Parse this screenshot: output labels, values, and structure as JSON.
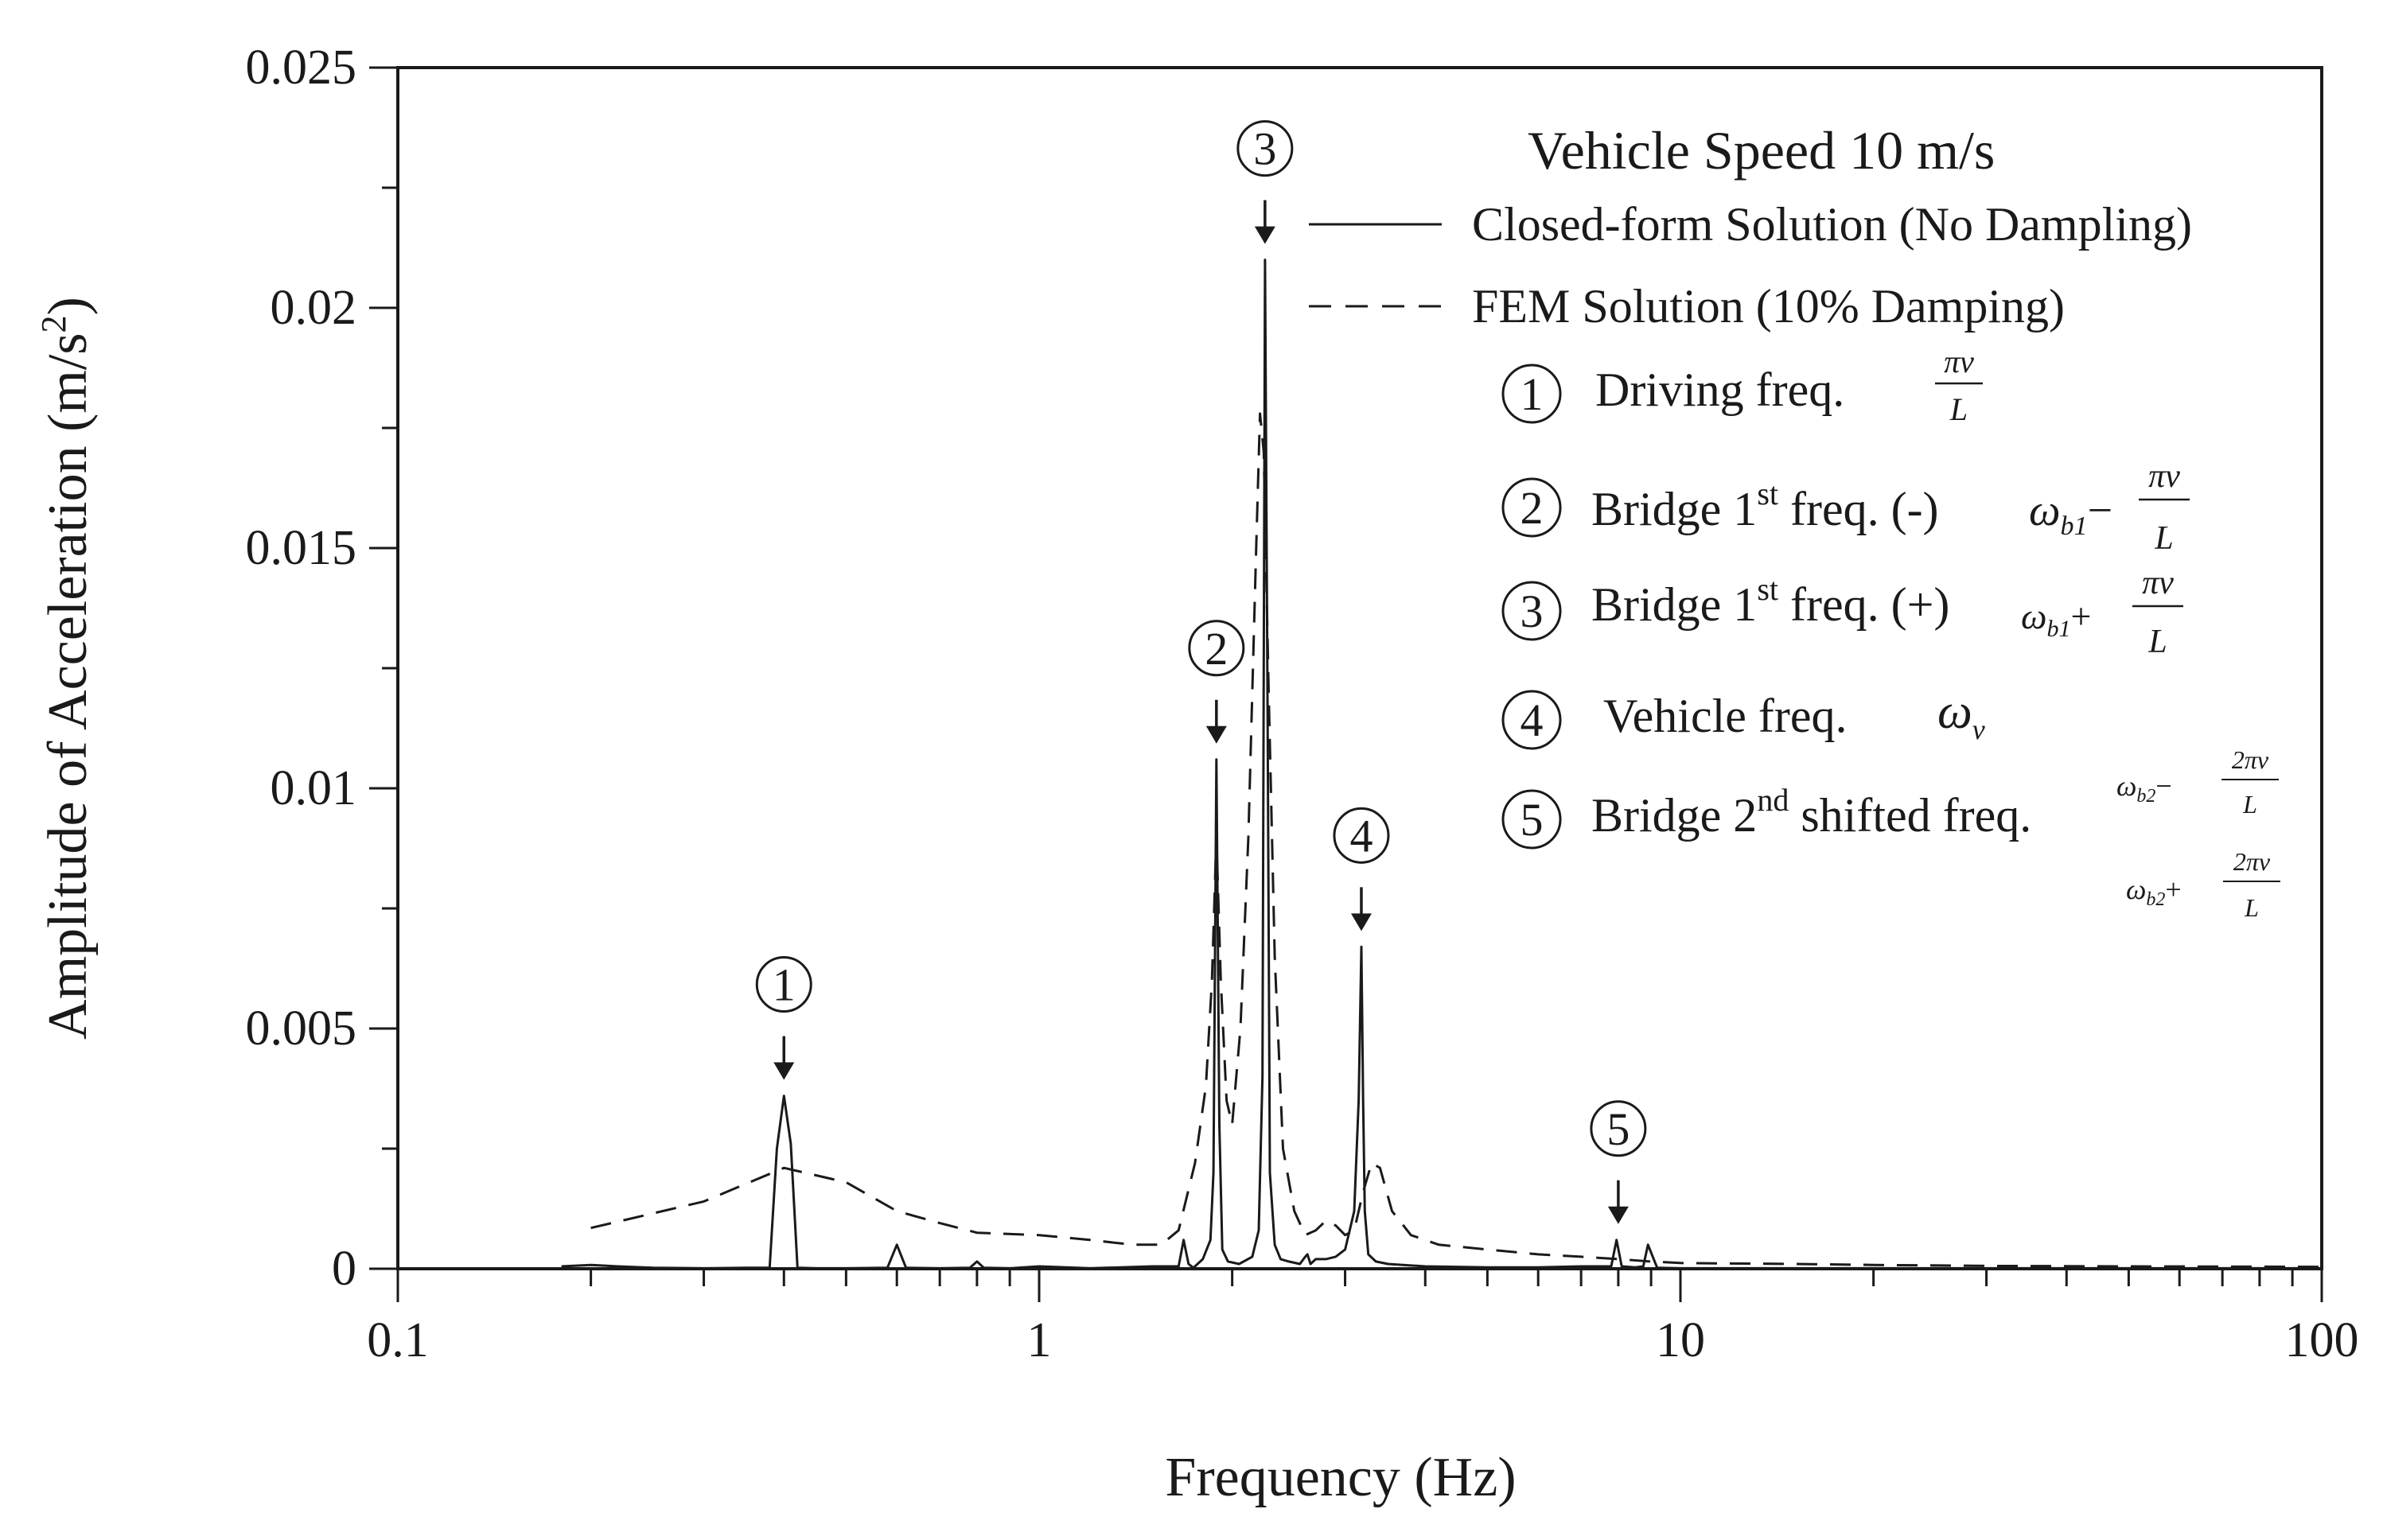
{
  "chart_data": {
    "type": "line",
    "x_scale": "log",
    "xlim": [
      0.1,
      100
    ],
    "ylim": [
      0,
      0.025
    ],
    "grid": false,
    "xlabel": "Frequency (Hz)",
    "ylabel": "Amplitude of Acceleration (m/s²)",
    "ylabel_parts": {
      "main": "Amplitude of Acceleration (m/s",
      "sup": "2",
      "end": ")"
    },
    "x_ticks": [
      {
        "value": 0.1,
        "label": "0.1"
      },
      {
        "value": 1,
        "label": "1"
      },
      {
        "value": 10,
        "label": "10"
      },
      {
        "value": 100,
        "label": "100"
      }
    ],
    "y_ticks": [
      {
        "value": 0,
        "label": "0"
      },
      {
        "value": 0.005,
        "label": "0.005"
      },
      {
        "value": 0.01,
        "label": "0.01"
      },
      {
        "value": 0.015,
        "label": "0.015"
      },
      {
        "value": 0.02,
        "label": "0.02"
      },
      {
        "value": 0.025,
        "label": "0.025"
      }
    ],
    "legend_title": "Vehicle Speed 10 m/s",
    "legend_position": "top-right",
    "series": [
      {
        "name": "Closed-form Solution (No Dampling)",
        "style": "solid",
        "color": "#1a1a1a",
        "x": [
          0.18,
          0.2,
          0.22,
          0.25,
          0.3,
          0.35,
          0.38,
          0.39,
          0.4,
          0.41,
          0.42,
          0.45,
          0.5,
          0.58,
          0.6,
          0.62,
          0.7,
          0.78,
          0.8,
          0.82,
          0.9,
          1.0,
          1.2,
          1.5,
          1.65,
          1.68,
          1.71,
          1.74,
          1.8,
          1.85,
          1.87,
          1.89,
          1.91,
          1.93,
          1.97,
          2.05,
          2.15,
          2.2,
          2.23,
          2.25,
          2.27,
          2.29,
          2.33,
          2.38,
          2.45,
          2.55,
          2.6,
          2.62,
          2.65,
          2.7,
          2.8,
          2.9,
          3.0,
          3.1,
          3.15,
          3.18,
          3.2,
          3.22,
          3.26,
          3.35,
          3.5,
          4.0,
          5.0,
          6.0,
          7.0,
          7.8,
          7.95,
          8.1,
          8.5,
          8.75,
          8.9,
          9.2,
          10,
          20,
          50,
          100
        ],
        "y": [
          5e-05,
          8e-05,
          5e-05,
          2e-05,
          1e-05,
          2e-05,
          2e-05,
          0.0025,
          0.0036,
          0.0026,
          2e-05,
          1e-05,
          1e-05,
          2e-05,
          0.0005,
          2e-05,
          1e-05,
          2e-05,
          0.00015,
          2e-05,
          1e-05,
          5e-05,
          1e-05,
          5e-05,
          5e-05,
          0.0006,
          0.0001,
          2e-05,
          0.0002,
          0.0006,
          0.002,
          0.0106,
          0.003,
          0.0004,
          0.00015,
          0.0001,
          0.00025,
          0.0008,
          0.004,
          0.021,
          0.012,
          0.002,
          0.0005,
          0.0002,
          0.00015,
          0.0001,
          0.00025,
          0.0003,
          0.0001,
          0.0002,
          0.0002,
          0.00025,
          0.0004,
          0.0012,
          0.0035,
          0.0067,
          0.0035,
          0.0012,
          0.0003,
          0.00015,
          0.0001,
          5e-05,
          3e-05,
          3e-05,
          5e-05,
          5e-05,
          0.0006,
          5e-05,
          3e-05,
          5e-05,
          0.0005,
          2e-05,
          1e-05,
          1e-05,
          1e-05,
          1e-05
        ]
      },
      {
        "name": "FEM Solution (10% Damping)",
        "style": "dashed",
        "color": "#1a1a1a",
        "x": [
          0.2,
          0.3,
          0.4,
          0.5,
          0.6,
          0.7,
          0.8,
          1.0,
          1.2,
          1.4,
          1.55,
          1.65,
          1.75,
          1.82,
          1.86,
          1.89,
          1.92,
          1.96,
          2.0,
          2.06,
          2.12,
          2.18,
          2.21,
          2.24,
          2.28,
          2.33,
          2.4,
          2.5,
          2.6,
          2.7,
          2.8,
          2.9,
          3.0,
          3.1,
          3.2,
          3.3,
          3.4,
          3.55,
          3.8,
          4.2,
          5.0,
          6.0,
          7.0,
          8.0,
          9.0,
          10,
          15,
          20,
          30,
          50,
          100
        ],
        "y": [
          0.00085,
          0.0014,
          0.0021,
          0.0018,
          0.0012,
          0.00095,
          0.00075,
          0.0007,
          0.0006,
          0.0005,
          0.0005,
          0.0008,
          0.0022,
          0.0038,
          0.006,
          0.009,
          0.006,
          0.0035,
          0.003,
          0.005,
          0.009,
          0.015,
          0.0178,
          0.017,
          0.012,
          0.0065,
          0.0025,
          0.0012,
          0.0007,
          0.0008,
          0.001,
          0.0009,
          0.0007,
          0.0008,
          0.0016,
          0.0022,
          0.0021,
          0.0012,
          0.0007,
          0.0005,
          0.0004,
          0.0003,
          0.00025,
          0.0002,
          0.00015,
          0.00012,
          0.0001,
          8e-05,
          6e-05,
          5e-05,
          4e-05
        ]
      }
    ],
    "annotations": [
      {
        "number": "1",
        "x": 0.4,
        "y": 0.0036
      },
      {
        "number": "2",
        "x": 1.89,
        "y": 0.0106
      },
      {
        "number": "3",
        "x": 2.25,
        "y": 0.021
      },
      {
        "number": "4",
        "x": 3.18,
        "y": 0.0067
      },
      {
        "number": "5",
        "x": 8.0,
        "y": 0.0006
      }
    ],
    "legend_items": [
      {
        "number": "1",
        "label": "Driving freq."
      },
      {
        "number": "2",
        "label_parts": [
          "Bridge 1",
          "st",
          " freq. (-)"
        ]
      },
      {
        "number": "3",
        "label_parts": [
          "Bridge 1",
          "st",
          " freq. (+)"
        ]
      },
      {
        "number": "4",
        "label": "Vehicle freq."
      },
      {
        "number": "5",
        "label_parts": [
          "Bridge 2",
          "nd",
          " shifted freq."
        ]
      }
    ],
    "formulas": {
      "pi_v": "πv",
      "two_pi_v": "2πv",
      "L": "L",
      "omega": "ω",
      "b1": "b1",
      "b2": "b2",
      "v_sub": "v",
      "minus": "−",
      "plus": "+"
    }
  }
}
